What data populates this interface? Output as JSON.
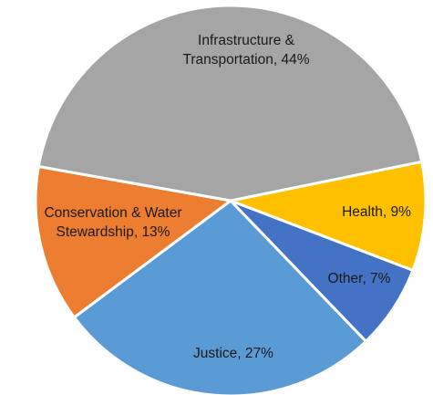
{
  "chart_data": {
    "type": "pie",
    "title": "",
    "start_angle_deg": 90,
    "direction": "clockwise",
    "legend": "none",
    "slices": [
      {
        "name": "Health",
        "value": 9,
        "label_lines": [
          "Health, 9%"
        ],
        "color": "#FFC000"
      },
      {
        "name": "Other",
        "value": 7,
        "label_lines": [
          "Other, 7%"
        ],
        "color": "#4472C4"
      },
      {
        "name": "Justice",
        "value": 27,
        "label_lines": [
          "Justice, 27%"
        ],
        "color": "#5B9BD5"
      },
      {
        "name": "Conservation & Water Stewardship",
        "value": 13,
        "label_lines": [
          "Conservation & Water",
          "Stewardship, 13%"
        ],
        "color": "#ED7D31"
      },
      {
        "name": "Infrastructure & Transportation",
        "value": 44,
        "label_lines": [
          "Infrastructure &",
          "Transportation, 44%"
        ],
        "color": "#A5A5A5"
      }
    ]
  }
}
